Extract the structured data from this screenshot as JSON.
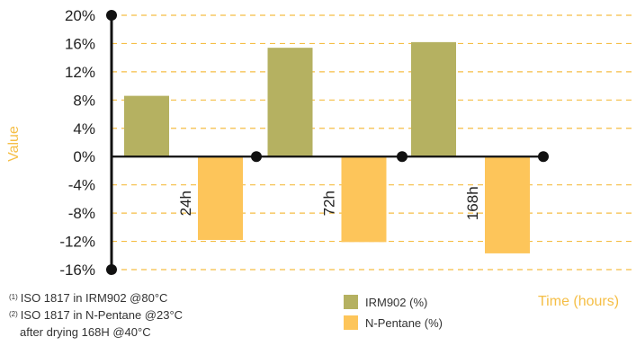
{
  "chart_data": {
    "type": "bar",
    "ylabel": "Value",
    "xlabel": "Time (hours)",
    "ylim": [
      -16,
      20
    ],
    "y_ticks": [
      "20%",
      "16%",
      "12%",
      "8%",
      "4%",
      "0%",
      "-4%",
      "-8%",
      "-12%",
      "-16%"
    ],
    "categories": [
      "24h",
      "72h",
      "168h"
    ],
    "series": [
      {
        "name": "IRM902 (%)",
        "color": "#b5b161",
        "values": [
          8.6,
          15.4,
          16.2
        ]
      },
      {
        "name": "N-Pentane (%)",
        "color": "#fdc55a",
        "values": [
          -11.8,
          -12.1,
          -13.7
        ]
      }
    ],
    "grid": true,
    "grid_color": "#f5be45",
    "axis_color": "#111111"
  },
  "footnotes": [
    {
      "mark": "(1)",
      "text": "ISO 1817 in IRM902 @80°C"
    },
    {
      "mark": "(2)",
      "text": "ISO 1817 in N-Pentane @23°C"
    },
    {
      "mark": "",
      "text": "after drying 168H @40°C"
    }
  ]
}
